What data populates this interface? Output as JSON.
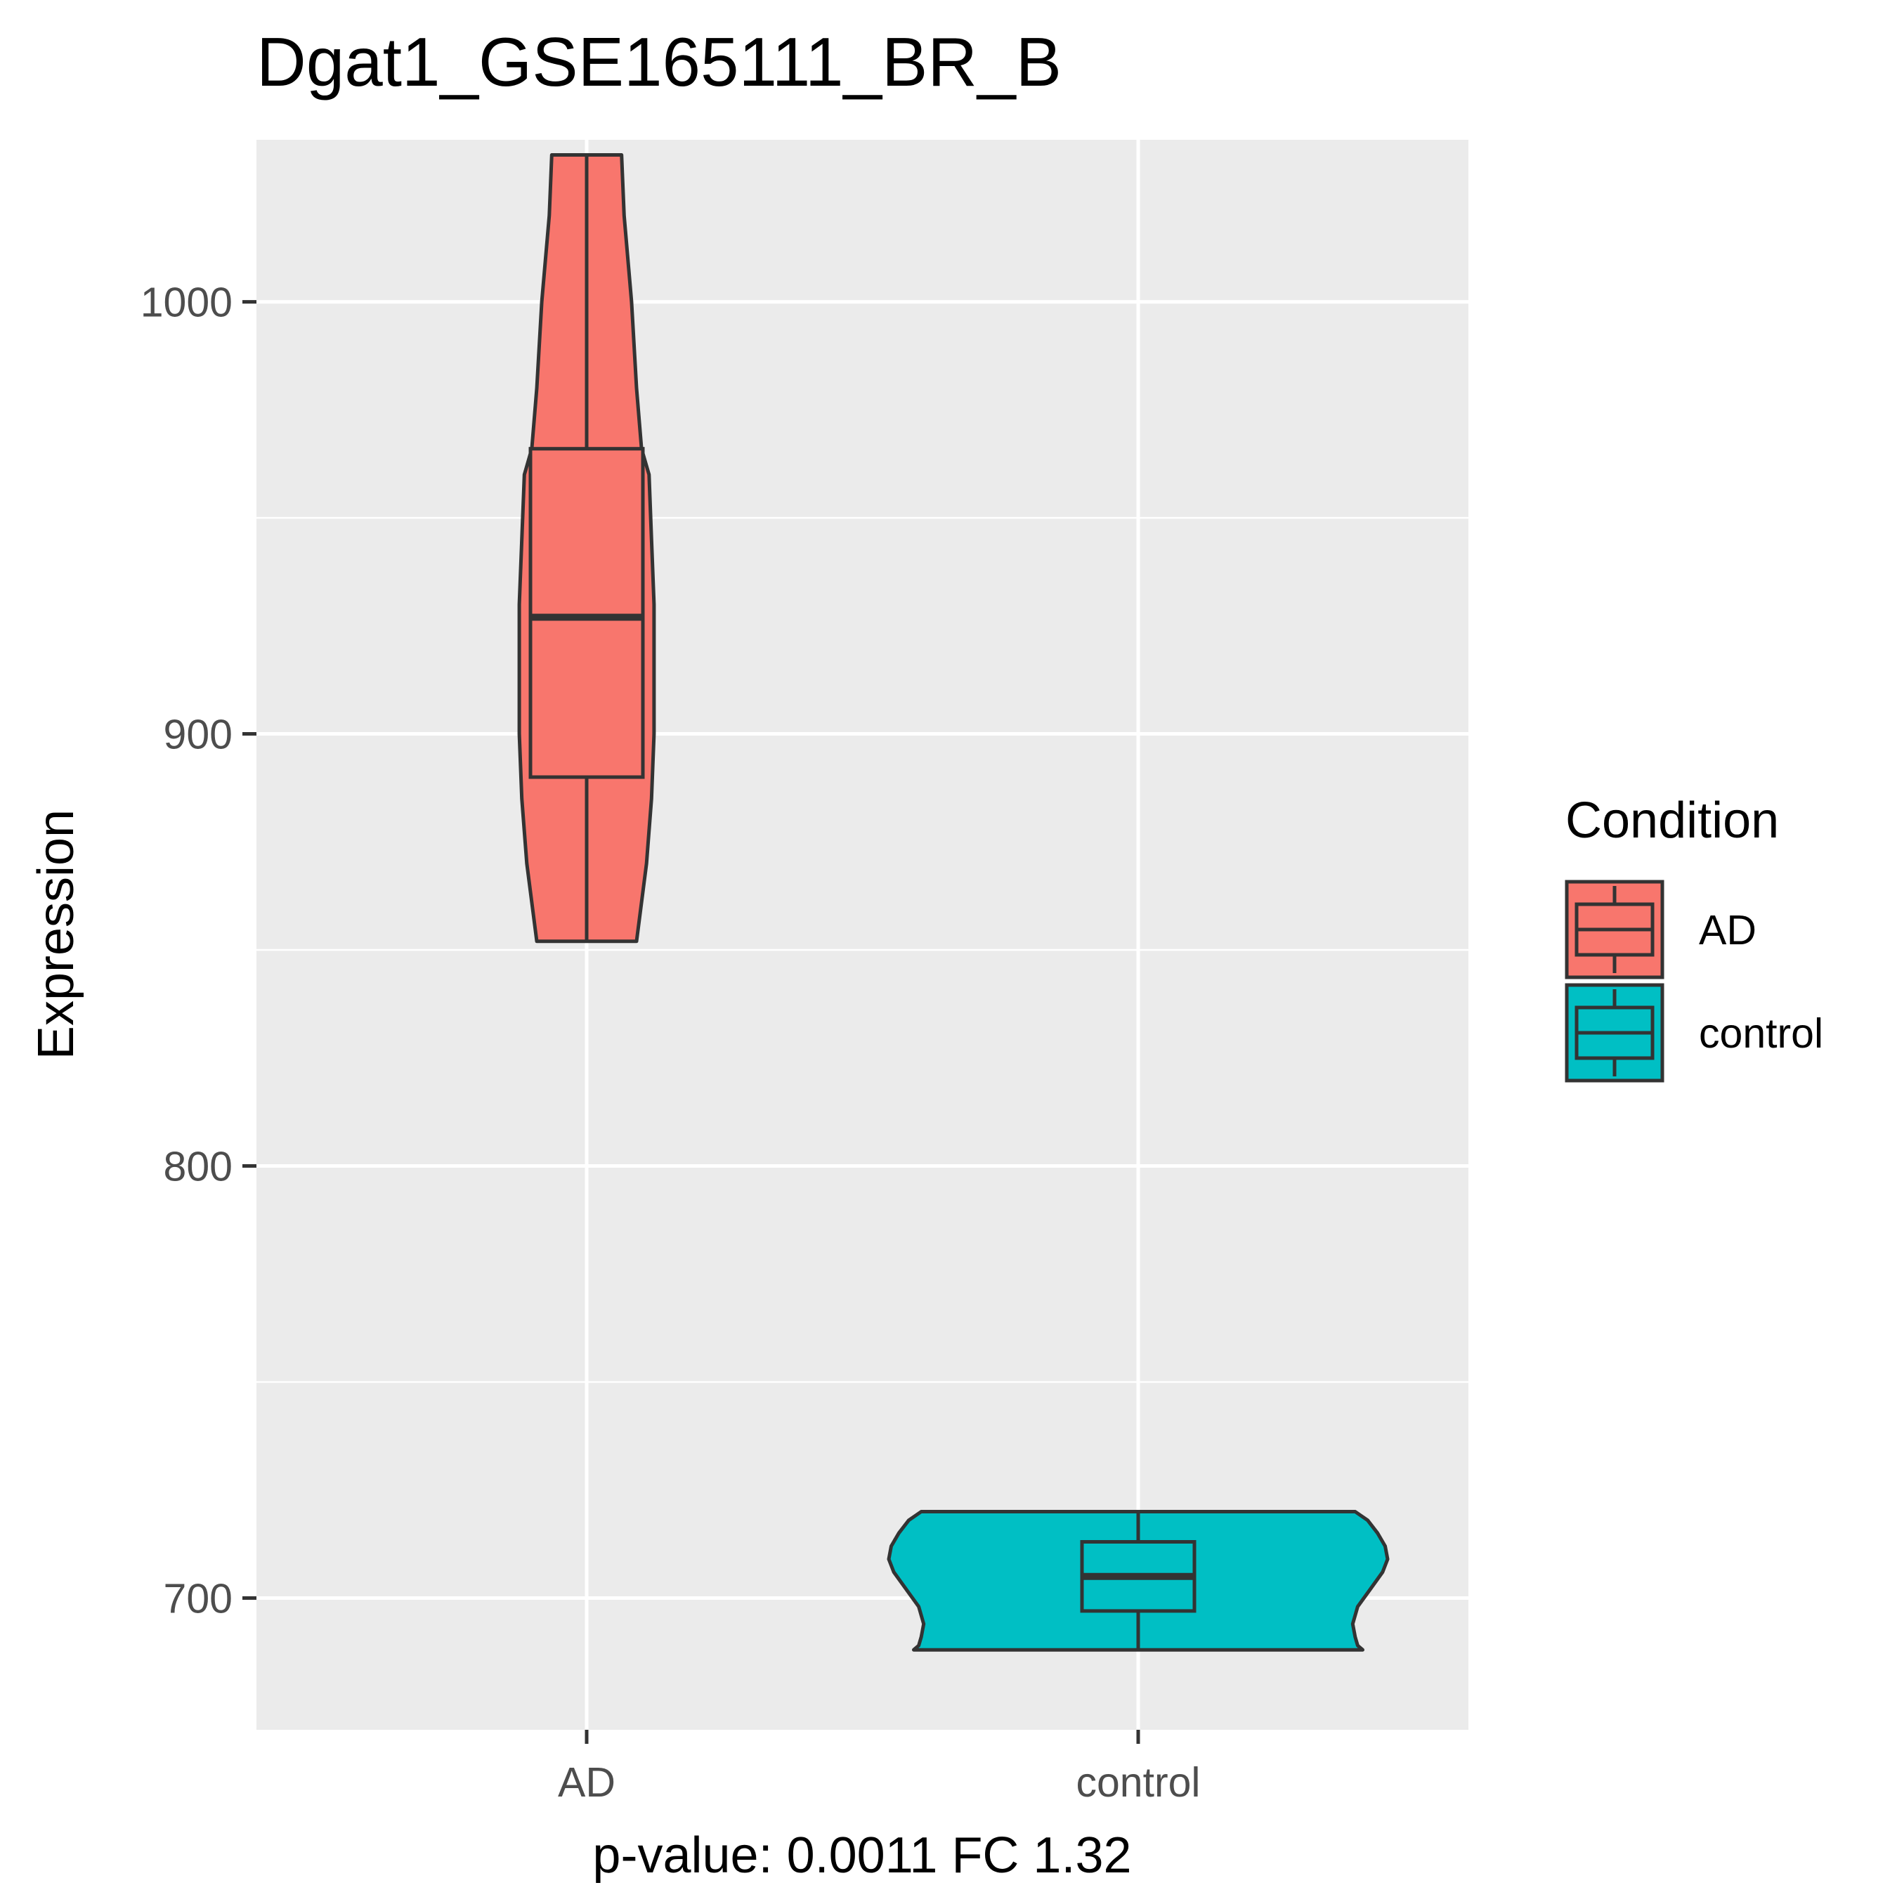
{
  "chart_data": {
    "type": "violin",
    "title": "Dgat1_GSE165111_BR_B",
    "xlabel": "p-value: 0.0011 FC 1.32",
    "ylabel": "Expression",
    "ylim": [
      669.5,
      1037.5
    ],
    "yticks": [
      700,
      800,
      900,
      1000
    ],
    "grid": true,
    "categories": [
      "AD",
      "control"
    ],
    "series": [
      {
        "name": "AD",
        "color": "#F8766D",
        "min": 852,
        "q1": 890,
        "median": 927,
        "q3": 966,
        "max": 1034,
        "density": [
          [
            852,
            0.2
          ],
          [
            870,
            0.24
          ],
          [
            885,
            0.26
          ],
          [
            900,
            0.27
          ],
          [
            915,
            0.27
          ],
          [
            930,
            0.27
          ],
          [
            945,
            0.26
          ],
          [
            960,
            0.25
          ],
          [
            966,
            0.22
          ],
          [
            980,
            0.2
          ],
          [
            1000,
            0.18
          ],
          [
            1020,
            0.15
          ],
          [
            1034,
            0.14
          ]
        ]
      },
      {
        "name": "control",
        "color": "#00BFC4",
        "min": 688,
        "q1": 697,
        "median": 705,
        "q3": 713,
        "max": 720,
        "density": [
          [
            688,
            0.9
          ],
          [
            689,
            0.88
          ],
          [
            691,
            0.87
          ],
          [
            694,
            0.86
          ],
          [
            698,
            0.88
          ],
          [
            702,
            0.93
          ],
          [
            706,
            0.98
          ],
          [
            709,
            1.0
          ],
          [
            712,
            0.99
          ],
          [
            715,
            0.96
          ],
          [
            718,
            0.92
          ],
          [
            720,
            0.87
          ]
        ]
      }
    ],
    "legend": {
      "title": "Condition",
      "position": "right",
      "entries": [
        "AD",
        "control"
      ]
    }
  }
}
